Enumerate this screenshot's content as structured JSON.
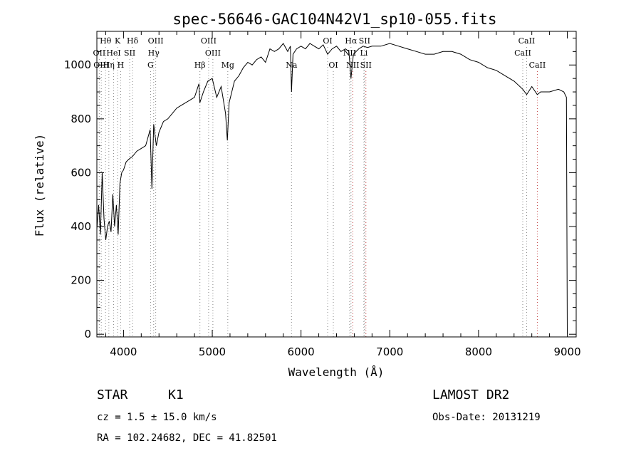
{
  "chart_data": {
    "type": "line",
    "title": "spec-56646-GAC104N42V1_sp10-055.fits",
    "xlabel": "Wavelength (Å)",
    "ylabel": "Flux (relative)",
    "xlim": [
      3700,
      9100
    ],
    "ylim": [
      -10,
      1125
    ],
    "xticks": [
      4000,
      5000,
      6000,
      7000,
      8000,
      9000
    ],
    "yticks": [
      0,
      200,
      400,
      600,
      800,
      1000
    ],
    "grid": false,
    "series": [
      {
        "x": [
          3700,
          3720,
          3740,
          3760,
          3780,
          3800,
          3820,
          3840,
          3860,
          3880,
          3900,
          3920,
          3940,
          3960,
          3980,
          4000,
          4030,
          4060,
          4100,
          4150,
          4200,
          4250,
          4300,
          4320,
          4340,
          4370,
          4400,
          4450,
          4500,
          4550,
          4600,
          4650,
          4700,
          4750,
          4800,
          4850,
          4860,
          4900,
          4950,
          5000,
          5050,
          5100,
          5150,
          5170,
          5190,
          5250,
          5300,
          5350,
          5400,
          5450,
          5500,
          5550,
          5600,
          5650,
          5700,
          5750,
          5800,
          5850,
          5880,
          5893,
          5910,
          5950,
          6000,
          6050,
          6100,
          6150,
          6200,
          6250,
          6300,
          6350,
          6400,
          6450,
          6500,
          6540,
          6563,
          6590,
          6650,
          6700,
          6750,
          6800,
          6900,
          7000,
          7100,
          7200,
          7300,
          7400,
          7500,
          7600,
          7700,
          7800,
          7900,
          8000,
          8100,
          8200,
          8300,
          8400,
          8498,
          8542,
          8600,
          8662,
          8700,
          8800,
          8900,
          8960,
          8990,
          9000
        ],
        "y": [
          390,
          480,
          370,
          600,
          430,
          350,
          400,
          420,
          380,
          520,
          400,
          480,
          370,
          560,
          600,
          610,
          640,
          650,
          660,
          680,
          690,
          700,
          760,
          540,
          780,
          700,
          750,
          790,
          800,
          820,
          840,
          850,
          860,
          870,
          880,
          930,
          860,
          900,
          940,
          950,
          880,
          920,
          820,
          720,
          860,
          940,
          960,
          990,
          1010,
          1000,
          1020,
          1030,
          1010,
          1060,
          1050,
          1060,
          1080,
          1050,
          1070,
          900,
          1040,
          1060,
          1070,
          1060,
          1080,
          1070,
          1060,
          1075,
          1040,
          1060,
          1070,
          1050,
          1060,
          1050,
          950,
          1040,
          1060,
          1070,
          1065,
          1070,
          1070,
          1080,
          1070,
          1060,
          1050,
          1040,
          1040,
          1050,
          1050,
          1040,
          1020,
          1010,
          990,
          980,
          960,
          940,
          910,
          890,
          920,
          890,
          900,
          900,
          910,
          900,
          880,
          0
        ]
      }
    ],
    "line_markers": [
      {
        "label": "Hθ",
        "wl": 3798,
        "row": 0
      },
      {
        "label": "K",
        "wl": 3934,
        "row": 0
      },
      {
        "label": "Hδ",
        "wl": 4102,
        "row": 0
      },
      {
        "label": "OIII",
        "wl": 4363,
        "row": 0
      },
      {
        "label": "OIII",
        "wl": 4959,
        "row": 0
      },
      {
        "label": "OI",
        "wl": 6300,
        "row": 0
      },
      {
        "label": "Hα",
        "wl": 6563,
        "row": 0
      },
      {
        "label": "SII",
        "wl": 6716,
        "row": 0
      },
      {
        "label": "CaII",
        "wl": 8542,
        "row": 0
      },
      {
        "label": "OII",
        "wl": 3727,
        "row": 1
      },
      {
        "label": "HeI",
        "wl": 3889,
        "row": 1
      },
      {
        "label": "SII",
        "wl": 4070,
        "row": 1
      },
      {
        "label": "Hγ",
        "wl": 4340,
        "row": 1
      },
      {
        "label": "OIII",
        "wl": 5007,
        "row": 1
      },
      {
        "label": "NII",
        "wl": 6548,
        "row": 1
      },
      {
        "label": "Li",
        "wl": 6708,
        "row": 1
      },
      {
        "label": "CaII",
        "wl": 8498,
        "row": 1
      },
      {
        "label": "OIII",
        "wl": 3750,
        "row": 2
      },
      {
        "label": "Hη",
        "wl": 3835,
        "row": 2
      },
      {
        "label": "H",
        "wl": 3968,
        "row": 2
      },
      {
        "label": "G",
        "wl": 4305,
        "row": 2
      },
      {
        "label": "Hβ",
        "wl": 4861,
        "row": 2
      },
      {
        "label": "Mg",
        "wl": 5175,
        "row": 2
      },
      {
        "label": "Na",
        "wl": 5893,
        "row": 2
      },
      {
        "label": "OI",
        "wl": 6364,
        "row": 2
      },
      {
        "label": "NII",
        "wl": 6583,
        "row": 2
      },
      {
        "label": "SII",
        "wl": 6731,
        "row": 2
      },
      {
        "label": "CaII",
        "wl": 8662,
        "row": 2
      }
    ]
  },
  "footer": {
    "object_class": "STAR",
    "subclass": "K1",
    "survey": "LAMOST DR2",
    "cz": "cz = 1.5 ± 15.0 km/s",
    "obs_date": "Obs-Date: 20131219",
    "coords": "RA = 102.24682, DEC =  41.82501"
  }
}
